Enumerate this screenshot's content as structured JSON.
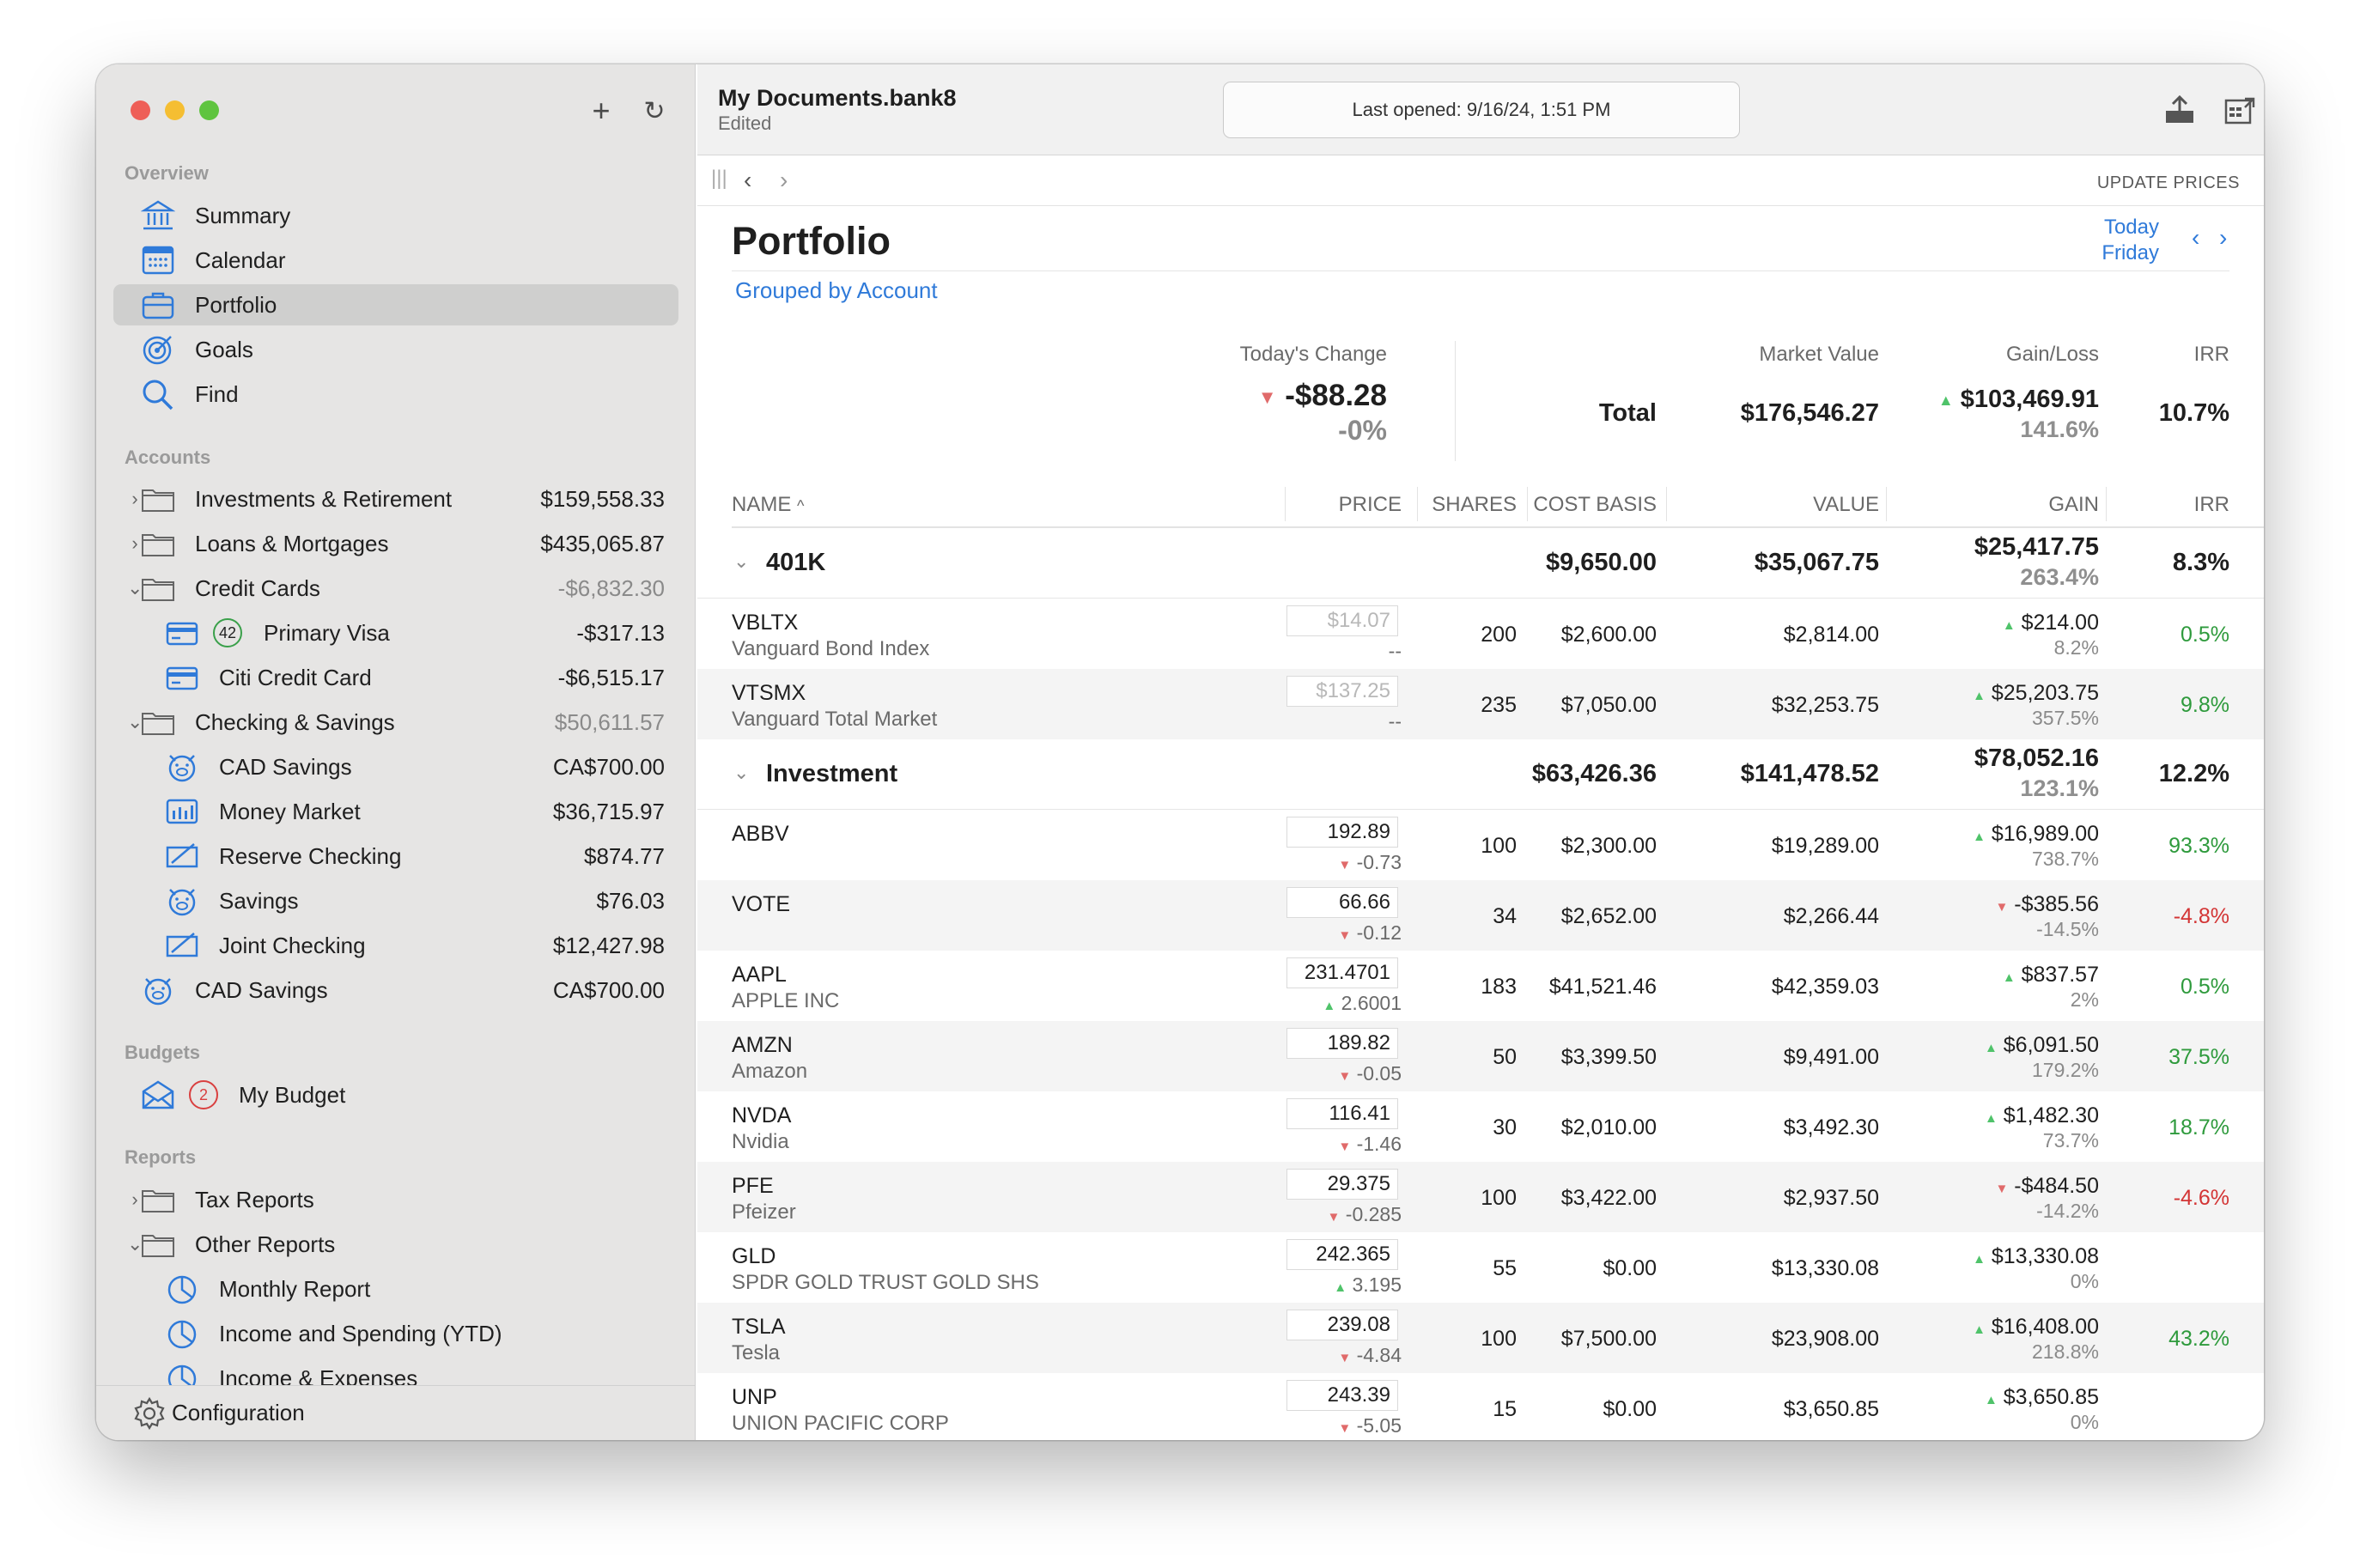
{
  "window": {
    "doc_title": "My Documents.bank8",
    "doc_status": "Edited",
    "last_opened": "Last opened: 9/16/24, 1:51 PM",
    "update_prices": "UPDATE PRICES"
  },
  "sidebar": {
    "overview_header": "Overview",
    "overview": [
      {
        "label": "Summary",
        "icon": "bank-icon"
      },
      {
        "label": "Calendar",
        "icon": "calendar-icon"
      },
      {
        "label": "Portfolio",
        "icon": "briefcase-icon"
      },
      {
        "label": "Goals",
        "icon": "target-icon"
      },
      {
        "label": "Find",
        "icon": "magnifier-icon"
      }
    ],
    "accounts_header": "Accounts",
    "accounts": [
      {
        "label": "Investments & Retirement",
        "amount": "$159,558.33"
      },
      {
        "label": "Loans & Mortgages",
        "amount": "$435,065.87"
      },
      {
        "label": "Credit Cards",
        "amount": "-$6,832.30"
      },
      {
        "label": "Primary Visa",
        "amount": "-$317.13",
        "badge": "42"
      },
      {
        "label": "Citi Credit Card",
        "amount": "-$6,515.17"
      },
      {
        "label": "Checking & Savings",
        "amount": "$50,611.57"
      },
      {
        "label": "CAD Savings",
        "amount": "CA$700.00"
      },
      {
        "label": "Money Market",
        "amount": "$36,715.97"
      },
      {
        "label": "Reserve Checking",
        "amount": "$874.77"
      },
      {
        "label": "Savings",
        "amount": "$76.03"
      },
      {
        "label": "Joint Checking",
        "amount": "$12,427.98"
      },
      {
        "label": "CAD Savings",
        "amount": "CA$700.00"
      }
    ],
    "budgets_header": "Budgets",
    "budget": {
      "label": "My Budget",
      "badge": "2"
    },
    "reports_header": "Reports",
    "reports": [
      {
        "label": "Tax Reports"
      },
      {
        "label": "Other Reports"
      },
      {
        "label": "Monthly Report"
      },
      {
        "label": "Income and Spending (YTD)"
      },
      {
        "label": "Income & Expenses"
      }
    ],
    "configuration": "Configuration"
  },
  "portfolio": {
    "title": "Portfolio",
    "grouping": "Grouped by Account",
    "date_today": "Today",
    "date_day": "Friday",
    "todays_change_label": "Today's Change",
    "todays_change": "-$88.28",
    "todays_change_pct": "-0%",
    "market_value_label": "Market Value",
    "gain_loss_label": "Gain/Loss",
    "irr_label": "IRR",
    "total_label": "Total",
    "total_market_value": "$176,546.27",
    "total_gain": "$103,469.91",
    "total_gain_pct": "141.6%",
    "total_irr": "10.7%"
  },
  "columns": {
    "name": "NAME",
    "price": "PRICE",
    "shares": "SHARES",
    "cost_basis": "COST BASIS",
    "value": "VALUE",
    "gain": "GAIN",
    "irr": "IRR"
  },
  "groups": [
    {
      "name": "401K",
      "cost_basis": "$9,650.00",
      "value": "$35,067.75",
      "gain": "$25,417.75",
      "gain_pct": "263.4%",
      "irr": "8.3%"
    },
    {
      "name": "Investment",
      "cost_basis": "$63,426.36",
      "value": "$141,478.52",
      "gain": "$78,052.16",
      "gain_pct": "123.1%",
      "irr": "12.2%"
    }
  ],
  "holdings_401k": [
    {
      "symbol": "VBLTX",
      "name": "Vanguard Bond Index",
      "price": "$14.07",
      "change": "--",
      "shares": "200",
      "cost_basis": "$2,600.00",
      "value": "$2,814.00",
      "gain": "$214.00",
      "gain_pct": "8.2%",
      "irr": "0.5%"
    },
    {
      "symbol": "VTSMX",
      "name": "Vanguard Total Market",
      "price": "$137.25",
      "change": "--",
      "shares": "235",
      "cost_basis": "$7,050.00",
      "value": "$32,253.75",
      "gain": "$25,203.75",
      "gain_pct": "357.5%",
      "irr": "9.8%"
    }
  ],
  "holdings_investment": [
    {
      "symbol": "ABBV",
      "name": "",
      "price": "192.89",
      "change": "-0.73",
      "shares": "100",
      "cost_basis": "$2,300.00",
      "value": "$19,289.00",
      "gain": "$16,989.00",
      "gain_pct": "738.7%",
      "irr": "93.3%"
    },
    {
      "symbol": "VOTE",
      "name": "",
      "price": "66.66",
      "change": "-0.12",
      "shares": "34",
      "cost_basis": "$2,652.00",
      "value": "$2,266.44",
      "gain": "-$385.56",
      "gain_pct": "-14.5%",
      "irr": "-4.8%"
    },
    {
      "symbol": "AAPL",
      "name": "APPLE INC",
      "price": "231.4701",
      "change": "2.6001",
      "shares": "183",
      "cost_basis": "$41,521.46",
      "value": "$42,359.03",
      "gain": "$837.57",
      "gain_pct": "2%",
      "irr": "0.5%"
    },
    {
      "symbol": "AMZN",
      "name": "Amazon",
      "price": "189.82",
      "change": "-0.05",
      "shares": "50",
      "cost_basis": "$3,399.50",
      "value": "$9,491.00",
      "gain": "$6,091.50",
      "gain_pct": "179.2%",
      "irr": "37.5%"
    },
    {
      "symbol": "NVDA",
      "name": "Nvidia",
      "price": "116.41",
      "change": "-1.46",
      "shares": "30",
      "cost_basis": "$2,010.00",
      "value": "$3,492.30",
      "gain": "$1,482.30",
      "gain_pct": "73.7%",
      "irr": "18.7%"
    },
    {
      "symbol": "PFE",
      "name": "Pfeizer",
      "price": "29.375",
      "change": "-0.285",
      "shares": "100",
      "cost_basis": "$3,422.00",
      "value": "$2,937.50",
      "gain": "-$484.50",
      "gain_pct": "-14.2%",
      "irr": "-4.6%"
    },
    {
      "symbol": "GLD",
      "name": "SPDR GOLD TRUST GOLD SHS",
      "price": "242.365",
      "change": "3.195",
      "shares": "55",
      "cost_basis": "$0.00",
      "value": "$13,330.08",
      "gain": "$13,330.08",
      "gain_pct": "0%",
      "irr": ""
    },
    {
      "symbol": "TSLA",
      "name": "Tesla",
      "price": "239.08",
      "change": "-4.84",
      "shares": "100",
      "cost_basis": "$7,500.00",
      "value": "$23,908.00",
      "gain": "$16,408.00",
      "gain_pct": "218.8%",
      "irr": "43.2%"
    },
    {
      "symbol": "UNP",
      "name": "UNION PACIFIC CORP",
      "price": "243.39",
      "change": "-5.05",
      "shares": "15",
      "cost_basis": "$0.00",
      "value": "$3,650.85",
      "gain": "$3,650.85",
      "gain_pct": "0%",
      "irr": ""
    }
  ],
  "colors": {
    "accent": "#2f7ad9",
    "gain_up": "#4fc36a",
    "loss_down": "#e06a6a",
    "irr_pos": "#2e9a3c",
    "irr_neg": "#d33535"
  }
}
